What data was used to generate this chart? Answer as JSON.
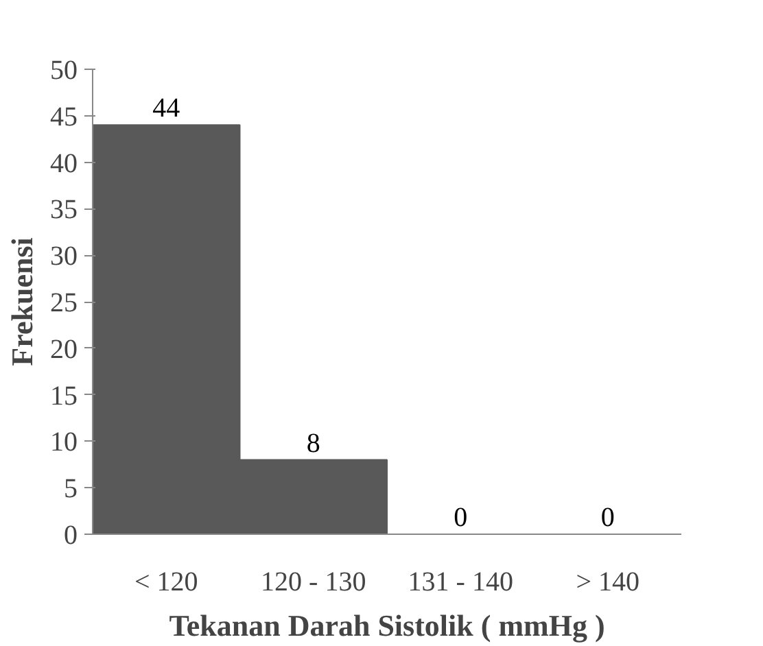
{
  "chart_data": {
    "type": "bar",
    "categories": [
      "< 120",
      "120 - 130",
      "131 - 140",
      "> 140"
    ],
    "values": [
      44,
      8,
      0,
      0
    ],
    "color": "#595959",
    "ylim": [
      0,
      50
    ],
    "yticks": [
      0,
      5,
      10,
      15,
      20,
      25,
      30,
      35,
      40,
      45,
      50
    ],
    "xlabel": "Tekanan Darah Sistolik ( mmHg )",
    "ylabel": "Frekuensi",
    "data_labels": true
  }
}
